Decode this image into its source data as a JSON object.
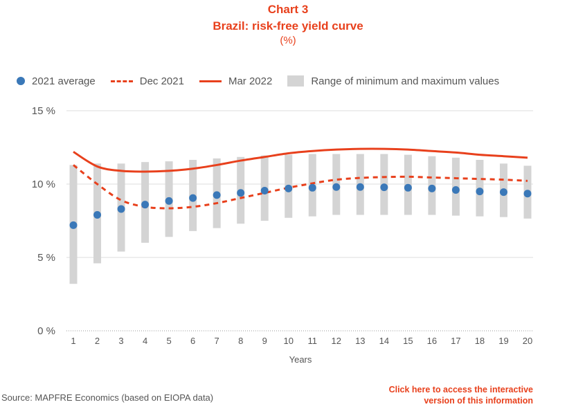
{
  "header": {
    "chart_number": "Chart 3",
    "title": "Brazil: risk-free yield curve",
    "unit": "(%)"
  },
  "legend": {
    "avg": "2021 average",
    "dec": "Dec 2021",
    "mar": "Mar 2022",
    "range": "Range of minimum and maximum values"
  },
  "footer": {
    "source": "Source: MAPFRE Economics (based on EIOPA data)",
    "link_line1": "Click here to access the interactive",
    "link_line2": "version of this information"
  },
  "colors": {
    "avg": "#3a78b8",
    "lines": "#e8401c",
    "range": "#d4d4d4"
  },
  "chart_data": {
    "type": "line",
    "title": "Brazil: risk-free yield curve",
    "xlabel": "Years",
    "ylabel": "",
    "x": [
      1,
      2,
      3,
      4,
      5,
      6,
      7,
      8,
      9,
      10,
      11,
      12,
      13,
      14,
      15,
      16,
      17,
      18,
      19,
      20
    ],
    "ylim": [
      0,
      15
    ],
    "yticks": [
      0,
      5,
      10,
      15
    ],
    "ytick_labels": [
      "0 %",
      "5 %",
      "10 %",
      "15 %"
    ],
    "grid": true,
    "legend_position": "top",
    "series": [
      {
        "name": "2021 average",
        "style": "dots",
        "values": [
          7.2,
          7.9,
          8.3,
          8.6,
          8.85,
          9.05,
          9.25,
          9.4,
          9.55,
          9.7,
          9.75,
          9.8,
          9.8,
          9.78,
          9.75,
          9.7,
          9.6,
          9.5,
          9.45,
          9.35
        ]
      },
      {
        "name": "Dec 2021",
        "style": "dashed",
        "values": [
          11.3,
          10.0,
          8.9,
          8.45,
          8.35,
          8.45,
          8.7,
          9.05,
          9.4,
          9.75,
          10.05,
          10.3,
          10.42,
          10.48,
          10.5,
          10.45,
          10.4,
          10.35,
          10.3,
          10.22
        ]
      },
      {
        "name": "Mar 2022",
        "style": "solid",
        "values": [
          12.2,
          11.2,
          10.9,
          10.85,
          10.9,
          11.05,
          11.3,
          11.6,
          11.85,
          12.1,
          12.25,
          12.35,
          12.4,
          12.4,
          12.35,
          12.25,
          12.15,
          12.0,
          11.9,
          11.8
        ]
      },
      {
        "name": "Range of minimum and maximum values",
        "style": "range",
        "low": [
          3.2,
          4.6,
          5.4,
          6.0,
          6.4,
          6.8,
          7.0,
          7.3,
          7.5,
          7.7,
          7.8,
          7.9,
          7.9,
          7.9,
          7.9,
          7.9,
          7.85,
          7.8,
          7.75,
          7.65
        ],
        "high": [
          11.3,
          11.4,
          11.4,
          11.5,
          11.55,
          11.65,
          11.75,
          11.85,
          11.95,
          12.0,
          12.05,
          12.05,
          12.05,
          12.05,
          12.0,
          11.9,
          11.8,
          11.65,
          11.4,
          11.25
        ]
      }
    ]
  }
}
